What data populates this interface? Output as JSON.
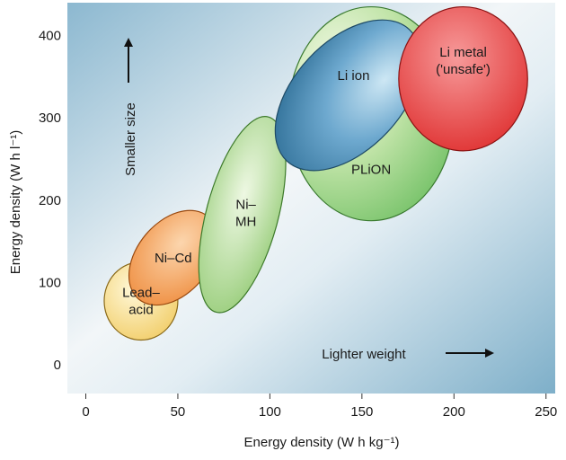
{
  "chart_data": {
    "type": "scatter",
    "xlabel": "Energy density (W h kg⁻¹)",
    "ylabel": "Energy density (W h l⁻¹)",
    "xlim": [
      -10,
      255
    ],
    "ylim": [
      -35,
      440
    ],
    "x_ticks": [
      "0",
      "50",
      "100",
      "150",
      "200",
      "250"
    ],
    "y_ticks": [
      "0",
      "100",
      "200",
      "300",
      "400"
    ],
    "x_tick_values": [
      0,
      50,
      100,
      150,
      200,
      250
    ],
    "y_tick_values": [
      0,
      100,
      200,
      300,
      400
    ],
    "grid": false,
    "series": [
      {
        "name": "Lead–acid",
        "label_lines": [
          "Lead–",
          "acid"
        ],
        "x_range": [
          10,
          50
        ],
        "y_range": [
          30,
          125
        ],
        "color": "#f7de8f"
      },
      {
        "name": "Ni–Cd",
        "label_lines": [
          "Ni–Cd"
        ],
        "x_range": [
          25,
          70
        ],
        "y_range": [
          60,
          200
        ],
        "color": "#f6a055"
      },
      {
        "name": "Ni–MH",
        "label_lines": [
          "Ni–",
          "MH"
        ],
        "x_range": [
          65,
          105
        ],
        "y_range": [
          65,
          300
        ],
        "color": "#b6dc96"
      },
      {
        "name": "PLiON",
        "label_lines": [
          "PLiON"
        ],
        "x_range": [
          110,
          200
        ],
        "y_range": [
          175,
          435
        ],
        "color": "#9fd48f"
      },
      {
        "name": "Li ion",
        "label_lines": [
          "Li ion"
        ],
        "x_range": [
          110,
          175
        ],
        "y_range": [
          250,
          405
        ],
        "color": "#3f86b0"
      },
      {
        "name": "Li metal ('unsafe')",
        "label_lines": [
          "Li metal",
          "('unsafe')"
        ],
        "x_range": [
          170,
          240
        ],
        "y_range": [
          260,
          435
        ],
        "color": "#e84545"
      }
    ],
    "annotations": {
      "smaller_size": "Smaller size",
      "lighter_weight": "Lighter weight"
    }
  }
}
